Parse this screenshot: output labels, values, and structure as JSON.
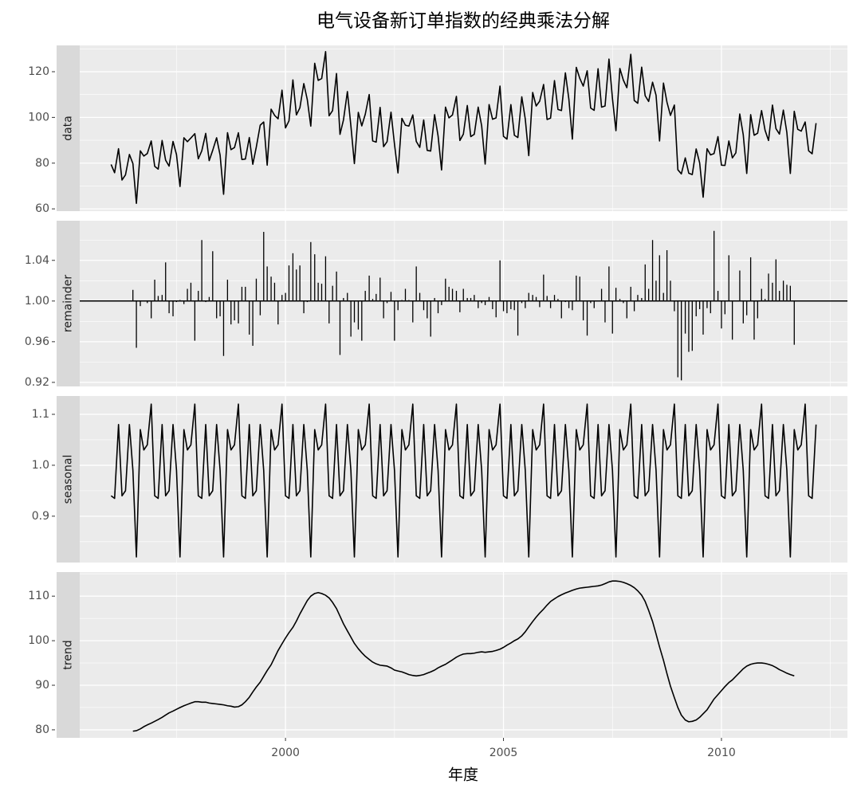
{
  "chart_data": {
    "type": "line",
    "title": "电气设备新订单指数的经典乘法分解",
    "xlabel": "年度",
    "xlim": [
      1995.28,
      2012.89
    ],
    "xticks": [
      2000,
      2005,
      2010
    ],
    "grid": true,
    "x": [
      1996,
      1996.08,
      1996.17,
      1996.25,
      1996.33,
      1996.42,
      1996.5,
      1996.58,
      1996.67,
      1996.75,
      1996.83,
      1996.92,
      1997,
      1997.08,
      1997.17,
      1997.25,
      1997.33,
      1997.42,
      1997.5,
      1997.58,
      1997.67,
      1997.75,
      1997.83,
      1997.92,
      1998,
      1998.08,
      1998.17,
      1998.25,
      1998.33,
      1998.42,
      1998.5,
      1998.58,
      1998.67,
      1998.75,
      1998.83,
      1998.92,
      1999,
      1999.08,
      1999.17,
      1999.25,
      1999.33,
      1999.42,
      1999.5,
      1999.58,
      1999.67,
      1999.75,
      1999.83,
      1999.92,
      2000,
      2000.08,
      2000.17,
      2000.25,
      2000.33,
      2000.42,
      2000.5,
      2000.58,
      2000.67,
      2000.75,
      2000.83,
      2000.92,
      2001,
      2001.08,
      2001.17,
      2001.25,
      2001.33,
      2001.42,
      2001.5,
      2001.58,
      2001.67,
      2001.75,
      2001.83,
      2001.92,
      2002,
      2002.08,
      2002.17,
      2002.25,
      2002.33,
      2002.42,
      2002.5,
      2002.58,
      2002.67,
      2002.75,
      2002.83,
      2002.92,
      2003,
      2003.08,
      2003.17,
      2003.25,
      2003.33,
      2003.42,
      2003.5,
      2003.58,
      2003.67,
      2003.75,
      2003.83,
      2003.92,
      2004,
      2004.08,
      2004.17,
      2004.25,
      2004.33,
      2004.42,
      2004.5,
      2004.58,
      2004.67,
      2004.75,
      2004.83,
      2004.92,
      2005,
      2005.08,
      2005.17,
      2005.25,
      2005.33,
      2005.42,
      2005.5,
      2005.58,
      2005.67,
      2005.75,
      2005.83,
      2005.92,
      2006,
      2006.08,
      2006.17,
      2006.25,
      2006.33,
      2006.42,
      2006.5,
      2006.58,
      2006.67,
      2006.75,
      2006.83,
      2006.92,
      2007,
      2007.08,
      2007.17,
      2007.25,
      2007.33,
      2007.42,
      2007.5,
      2007.58,
      2007.67,
      2007.75,
      2007.83,
      2007.92,
      2008,
      2008.08,
      2008.17,
      2008.25,
      2008.33,
      2008.42,
      2008.5,
      2008.58,
      2008.67,
      2008.75,
      2008.83,
      2008.92,
      2009,
      2009.08,
      2009.17,
      2009.25,
      2009.33,
      2009.42,
      2009.5,
      2009.58,
      2009.67,
      2009.75,
      2009.83,
      2009.92,
      2010,
      2010.08,
      2010.17,
      2010.25,
      2010.33,
      2010.42,
      2010.5,
      2010.58,
      2010.67,
      2010.75,
      2010.83,
      2010.92,
      2011,
      2011.08,
      2011.17,
      2011.25,
      2011.33,
      2011.42,
      2011.5,
      2011.58,
      2011.67,
      2011.75,
      2011.83,
      2011.92,
      2012,
      2012.08,
      2012.17
    ],
    "series": [
      {
        "name": "data",
        "type": "line",
        "color": "#000000",
        "ylim": [
          59,
          131.5
        ],
        "yticks": [
          60,
          80,
          100,
          120
        ],
        "values": [
          79.4,
          75.8,
          86.3,
          72.6,
          74.9,
          83.8,
          79.8,
          62.4,
          85.4,
          83.1,
          84.2,
          89.7,
          78.6,
          77.4,
          89.9,
          81.3,
          78.7,
          89.5,
          83.7,
          69.8,
          91.1,
          89.4,
          91.0,
          92.9,
          81.9,
          85.4,
          93.0,
          81.1,
          85.6,
          91.1,
          83.5,
          66.4,
          93.3,
          85.9,
          86.8,
          93.3,
          81.6,
          81.8,
          91.2,
          79.5,
          87.0,
          96.6,
          98.0,
          79.1,
          103.6,
          100.9,
          99.4,
          111.9,
          95.4,
          98.5,
          116.4,
          101.1,
          104.2,
          114.8,
          107.8,
          96.2,
          123.7,
          116.2,
          117.0,
          128.8,
          100.7,
          103.0,
          119.2,
          92.6,
          98.9,
          111.3,
          96.3,
          79.8,
          102.2,
          96.3,
          101.4,
          110.0,
          89.7,
          89.2,
          104.4,
          87.2,
          89.4,
          102.3,
          88.3,
          75.7,
          99.6,
          96.6,
          96.2,
          101.1,
          89.5,
          86.9,
          98.9,
          85.6,
          85.3,
          101.2,
          91.9,
          77.0,
          104.5,
          99.8,
          101.1,
          109.2,
          89.9,
          92.7,
          105.2,
          91.6,
          92.6,
          104.5,
          96.3,
          79.6,
          105.6,
          99.2,
          99.8,
          113.7,
          91.7,
          90.5,
          105.6,
          92.2,
          91.2,
          109.0,
          99.3,
          83.3,
          110.9,
          105.0,
          107.1,
          114.4,
          99.1,
          99.7,
          116.1,
          103.5,
          103.0,
          119.5,
          108.0,
          90.5,
          121.9,
          117.1,
          113.7,
          120.4,
          104.1,
          103.1,
          121.3,
          104.5,
          105.0,
          125.5,
          108.2,
          94.2,
          121.4,
          116.3,
          113.0,
          127.6,
          107.4,
          106.2,
          122.0,
          109.5,
          107.0,
          115.4,
          109.7,
          89.7,
          115.0,
          106.7,
          100.9,
          105.4,
          77.1,
          75.3,
          82.3,
          75.6,
          75.0,
          86.2,
          80.1,
          65.1,
          86.3,
          83.6,
          84.2,
          91.6,
          79.1,
          79.0,
          89.7,
          82.3,
          84.5,
          101.5,
          92.4,
          75.5,
          101.2,
          92.2,
          93.1,
          103.0,
          94.4,
          89.9,
          105.4,
          95.1,
          92.7,
          103.2,
          93.4,
          75.5,
          102.7,
          94.8,
          94.0,
          98.0,
          85.4,
          84.1,
          97.5
        ]
      },
      {
        "name": "remainder",
        "type": "bar",
        "color": "#000000",
        "baseline": 1,
        "ylim": [
          0.916,
          1.079
        ],
        "yticks": [
          0.92,
          0.96,
          {
            "value": 1,
            "label": "1.00"
          },
          1.04
        ],
        "values": [
          null,
          null,
          null,
          null,
          null,
          null,
          1.011,
          0.954,
          0.995,
          1.0,
          0.998,
          0.983,
          1.021,
          1.005,
          1.006,
          1.038,
          0.988,
          0.985,
          0.999,
          1.001,
          0.997,
          1.012,
          1.018,
          0.961,
          1.01,
          1.06,
          0.999,
          1.004,
          1.049,
          0.983,
          0.985,
          0.946,
          1.021,
          0.977,
          0.981,
          0.978,
          1.014,
          1.014,
          0.967,
          0.956,
          1.022,
          0.986,
          1.068,
          1.034,
          1.024,
          1.018,
          0.977,
          1.006,
          1.008,
          1.035,
          1.047,
          1.031,
          1.035,
          0.988,
          0.999,
          1.058,
          1.046,
          1.018,
          1.017,
          1.044,
          0.978,
          1.015,
          1.029,
          0.947,
          1.003,
          1.008,
          0.965,
          0.979,
          0.972,
          0.961,
          1.01,
          1.025,
          1.002,
          1.007,
          1.023,
          0.983,
          0.998,
          1.009,
          0.961,
          0.991,
          1.001,
          1.012,
          1.001,
          0.979,
          1.034,
          1.008,
          0.991,
          0.983,
          0.965,
          1.003,
          0.988,
          0.996,
          1.022,
          1.014,
          1.012,
          1.01,
          0.989,
          1.012,
          1.003,
          1.003,
          1.006,
          0.993,
          0.998,
          0.996,
          1.004,
          0.992,
          0.984,
          1.04,
          0.99,
          0.988,
          0.992,
          0.991,
          0.966,
          0.998,
          0.993,
          1.008,
          1.006,
          1.004,
          0.994,
          1.026,
          1.005,
          0.993,
          1.006,
          1.002,
          0.983,
          0.999,
          0.993,
          0.991,
          1.025,
          1.024,
          0.981,
          0.966,
          0.998,
          0.993,
          1.0,
          1.012,
          0.979,
          1.034,
          0.968,
          1.013,
          1.002,
          0.998,
          0.983,
          1.014,
          0.99,
          1.006,
          1.003,
          1.036,
          1.012,
          1.06,
          1.02,
          1.045,
          1.008,
          1.05,
          1.02,
          0.99,
          0.925,
          0.922,
          0.968,
          0.95,
          0.951,
          0.985,
          0.992,
          0.967,
          0.993,
          0.988,
          1.069,
          1.01,
          0.973,
          0.987,
          1.045,
          0.962,
          1.0,
          1.03,
          0.978,
          0.986,
          1.043,
          0.962,
          0.983,
          1.012,
          1.002,
          1.027,
          1.018,
          1.041,
          1.01,
          1.02,
          1.016,
          1.015,
          0.957,
          null,
          null,
          null,
          null,
          null,
          null
        ]
      },
      {
        "name": "seasonal",
        "type": "line",
        "color": "#000000",
        "ylim": [
          0.809,
          1.136
        ],
        "yticks": [
          0.9,
          {
            "value": 1,
            "label": "1.0"
          },
          1.1
        ],
        "values": [
          0.94,
          0.935,
          1.08,
          0.94,
          0.95,
          1.08,
          0.99,
          0.82,
          1.07,
          1.03,
          1.04,
          1.12,
          0.94,
          0.935,
          1.08,
          0.94,
          0.95,
          1.08,
          0.99,
          0.82,
          1.07,
          1.03,
          1.04,
          1.12,
          0.94,
          0.935,
          1.08,
          0.94,
          0.95,
          1.08,
          0.99,
          0.82,
          1.07,
          1.03,
          1.04,
          1.12,
          0.94,
          0.935,
          1.08,
          0.94,
          0.95,
          1.08,
          0.99,
          0.82,
          1.07,
          1.03,
          1.04,
          1.12,
          0.94,
          0.935,
          1.08,
          0.94,
          0.95,
          1.08,
          0.99,
          0.82,
          1.07,
          1.03,
          1.04,
          1.12,
          0.94,
          0.935,
          1.08,
          0.94,
          0.95,
          1.08,
          0.99,
          0.82,
          1.07,
          1.03,
          1.04,
          1.12,
          0.94,
          0.935,
          1.08,
          0.94,
          0.95,
          1.08,
          0.99,
          0.82,
          1.07,
          1.03,
          1.04,
          1.12,
          0.94,
          0.935,
          1.08,
          0.94,
          0.95,
          1.08,
          0.99,
          0.82,
          1.07,
          1.03,
          1.04,
          1.12,
          0.94,
          0.935,
          1.08,
          0.94,
          0.95,
          1.08,
          0.99,
          0.82,
          1.07,
          1.03,
          1.04,
          1.12,
          0.94,
          0.935,
          1.08,
          0.94,
          0.95,
          1.08,
          0.99,
          0.82,
          1.07,
          1.03,
          1.04,
          1.12,
          0.94,
          0.935,
          1.08,
          0.94,
          0.95,
          1.08,
          0.99,
          0.82,
          1.07,
          1.03,
          1.04,
          1.12,
          0.94,
          0.935,
          1.08,
          0.94,
          0.95,
          1.08,
          0.99,
          0.82,
          1.07,
          1.03,
          1.04,
          1.12,
          0.94,
          0.935,
          1.08,
          0.94,
          0.95,
          1.08,
          0.99,
          0.82,
          1.07,
          1.03,
          1.04,
          1.12,
          0.94,
          0.935,
          1.08,
          0.94,
          0.95,
          1.08,
          0.99,
          0.82,
          1.07,
          1.03,
          1.04,
          1.12,
          0.94,
          0.935,
          1.08,
          0.94,
          0.95,
          1.08,
          0.99,
          0.82,
          1.07,
          1.03,
          1.04,
          1.12,
          0.94,
          0.935,
          1.08,
          0.94,
          0.95,
          1.08,
          0.99,
          0.82,
          1.07,
          1.03,
          1.04,
          1.12,
          0.94,
          0.935,
          1.08
        ]
      },
      {
        "name": "trend",
        "type": "line",
        "color": "#000000",
        "ylim": [
          78.2,
          115.4
        ],
        "yticks": [
          80,
          90,
          100,
          110
        ],
        "values": [
          null,
          null,
          null,
          null,
          null,
          null,
          79.7,
          79.8,
          80.2,
          80.7,
          81.1,
          81.5,
          81.9,
          82.3,
          82.8,
          83.3,
          83.8,
          84.2,
          84.6,
          85.0,
          85.4,
          85.7,
          86.0,
          86.3,
          86.3,
          86.2,
          86.2,
          86.0,
          85.9,
          85.8,
          85.7,
          85.6,
          85.4,
          85.3,
          85.1,
          85.2,
          85.6,
          86.3,
          87.3,
          88.5,
          89.6,
          90.7,
          92.0,
          93.3,
          94.6,
          96.2,
          97.8,
          99.3,
          100.6,
          101.8,
          103.0,
          104.4,
          106.0,
          107.6,
          109.0,
          110.0,
          110.6,
          110.8,
          110.6,
          110.2,
          109.6,
          108.6,
          107.2,
          105.5,
          103.8,
          102.2,
          100.8,
          99.4,
          98.2,
          97.3,
          96.5,
          95.8,
          95.2,
          94.8,
          94.5,
          94.4,
          94.3,
          93.9,
          93.4,
          93.2,
          93.0,
          92.7,
          92.4,
          92.2,
          92.1,
          92.2,
          92.4,
          92.7,
          93.0,
          93.4,
          93.9,
          94.3,
          94.7,
          95.2,
          95.7,
          96.3,
          96.7,
          97.0,
          97.1,
          97.1,
          97.2,
          97.4,
          97.5,
          97.4,
          97.5,
          97.6,
          97.8,
          98.1,
          98.5,
          99.0,
          99.5,
          100.0,
          100.4,
          101.1,
          102.0,
          103.1,
          104.3,
          105.3,
          106.2,
          107.1,
          108.0,
          108.8,
          109.4,
          109.9,
          110.3,
          110.7,
          111.0,
          111.3,
          111.6,
          111.8,
          111.9,
          112.0,
          112.1,
          112.2,
          112.3,
          112.5,
          112.8,
          113.2,
          113.4,
          113.4,
          113.3,
          113.1,
          112.8,
          112.4,
          111.9,
          111.2,
          110.2,
          108.8,
          106.8,
          104.3,
          101.5,
          98.6,
          95.6,
          92.6,
          89.8,
          87.2,
          85.0,
          83.3,
          82.2,
          81.8,
          81.9,
          82.2,
          82.8,
          83.6,
          84.5,
          85.7,
          86.9,
          87.9,
          88.8,
          89.7,
          90.6,
          91.2,
          92.0,
          92.9,
          93.7,
          94.3,
          94.7,
          94.9,
          95.0,
          95.0,
          94.9,
          94.7,
          94.4,
          94.0,
          93.5,
          93.1,
          92.7,
          92.4,
          92.1,
          null,
          null,
          null,
          null,
          null,
          null
        ]
      }
    ]
  }
}
